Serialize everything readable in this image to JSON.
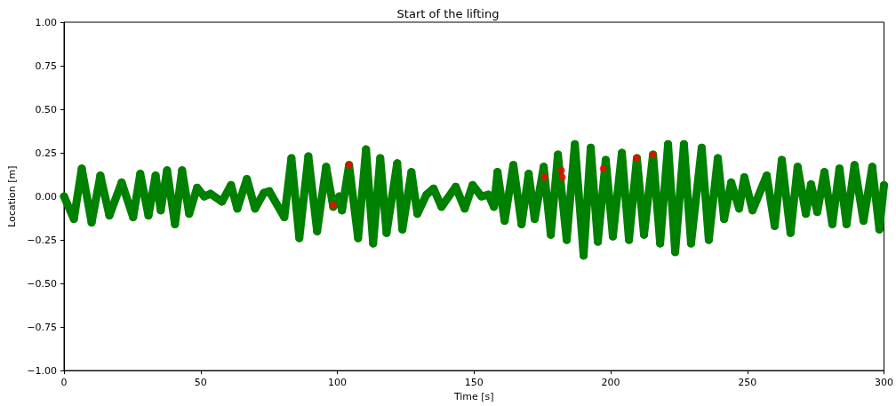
{
  "chart_data": {
    "type": "scatter",
    "title": "Start of the lifting",
    "xlabel": "Time [s]",
    "ylabel": "Location [m]",
    "xlim": [
      0,
      300
    ],
    "xticks": [
      0,
      50,
      100,
      150,
      200,
      250,
      300
    ],
    "ylim": [
      -1,
      1
    ],
    "yticks": [
      {
        "value": -1,
        "label": "−1.00"
      },
      {
        "value": -0.75,
        "label": "−0.75"
      },
      {
        "value": -0.5,
        "label": "−0.50"
      },
      {
        "value": -0.25,
        "label": "−0.25"
      },
      {
        "value": 0,
        "label": "0.00"
      },
      {
        "value": 0.25,
        "label": "0.25"
      },
      {
        "value": 0.5,
        "label": "0.50"
      },
      {
        "value": 0.75,
        "label": "0.75"
      },
      {
        "value": 1,
        "label": "1.00"
      }
    ],
    "marker": "circle",
    "series": [
      {
        "type": "line",
        "color": "#008000",
        "x": [
          0,
          3.6,
          6.5,
          10.1,
          13.3,
          16.6,
          21.1,
          25.3,
          27.9,
          30.9,
          33.5,
          35.4,
          37.7,
          40.6,
          43.2,
          45.8,
          48.7,
          51.3,
          53.6,
          57.8,
          61.1,
          63.4,
          66.9,
          69.9,
          73.1,
          75.1,
          80.6,
          83.2,
          86.1,
          89.4,
          92.6,
          95.9,
          98.5,
          100.7,
          101.7,
          104.3,
          107.6,
          110.5,
          113.1,
          115.7,
          118.0,
          121.9,
          123.8,
          127.1,
          129.3,
          132.6,
          135.2,
          138.1,
          143.3,
          146.6,
          149.5,
          152.7,
          155.3,
          157.3,
          158.6,
          161.2,
          164.4,
          167.4,
          170.0,
          172.2,
          175.5,
          178.1,
          180.7,
          183.9,
          186.9,
          190.1,
          192.7,
          195.3,
          198.2,
          200.8,
          204.1,
          206.7,
          209.6,
          212.2,
          215.5,
          218.1,
          221.0,
          223.6,
          226.8,
          229.4,
          233.3,
          235.9,
          239.2,
          241.5,
          244.1,
          247.0,
          248.9,
          251.9,
          257.1,
          260.0,
          262.6,
          265.8,
          268.4,
          271.4,
          273.3,
          275.6,
          278.2,
          281.1,
          283.7,
          286.3,
          289.2,
          292.5,
          295.7,
          298.3,
          300
        ],
        "values": [
          0,
          -0.13,
          0.16,
          -0.15,
          0.12,
          -0.11,
          0.08,
          -0.12,
          0.13,
          -0.11,
          0.12,
          -0.08,
          0.15,
          -0.16,
          0.15,
          -0.1,
          0.05,
          0,
          0.015,
          -0.03,
          0.065,
          -0.07,
          0.1,
          -0.07,
          0.02,
          0.03,
          -0.12,
          0.22,
          -0.24,
          0.23,
          -0.2,
          0.17,
          -0.06,
          0,
          -0.08,
          0.18,
          -0.24,
          0.27,
          -0.27,
          0.22,
          -0.21,
          0.19,
          -0.19,
          0.14,
          -0.1,
          0.01,
          0.045,
          -0.06,
          0.055,
          -0.07,
          0.065,
          0,
          0.01,
          -0.06,
          0.14,
          -0.14,
          0.18,
          -0.16,
          0.13,
          -0.13,
          0.17,
          -0.22,
          0.24,
          -0.25,
          0.3,
          -0.34,
          0.28,
          -0.26,
          0.21,
          -0.23,
          0.25,
          -0.25,
          0.22,
          -0.22,
          0.24,
          -0.27,
          0.3,
          -0.32,
          0.3,
          -0.27,
          0.28,
          -0.25,
          0.22,
          -0.13,
          0.08,
          -0.07,
          0.11,
          -0.08,
          0.12,
          -0.17,
          0.21,
          -0.21,
          0.17,
          -0.1,
          0.07,
          -0.09,
          0.14,
          -0.16,
          0.16,
          -0.16,
          0.18,
          -0.14,
          0.17,
          -0.19,
          0.065
        ]
      },
      {
        "color": "#ff0000",
        "x": [
          98.5,
          104.3,
          175.8,
          182,
          182.3,
          197.3,
          209.6,
          215.5
        ],
        "values": [
          -0.05,
          0.18,
          0.11,
          0.15,
          0.11,
          0.16,
          0.22,
          0.24
        ]
      }
    ]
  }
}
